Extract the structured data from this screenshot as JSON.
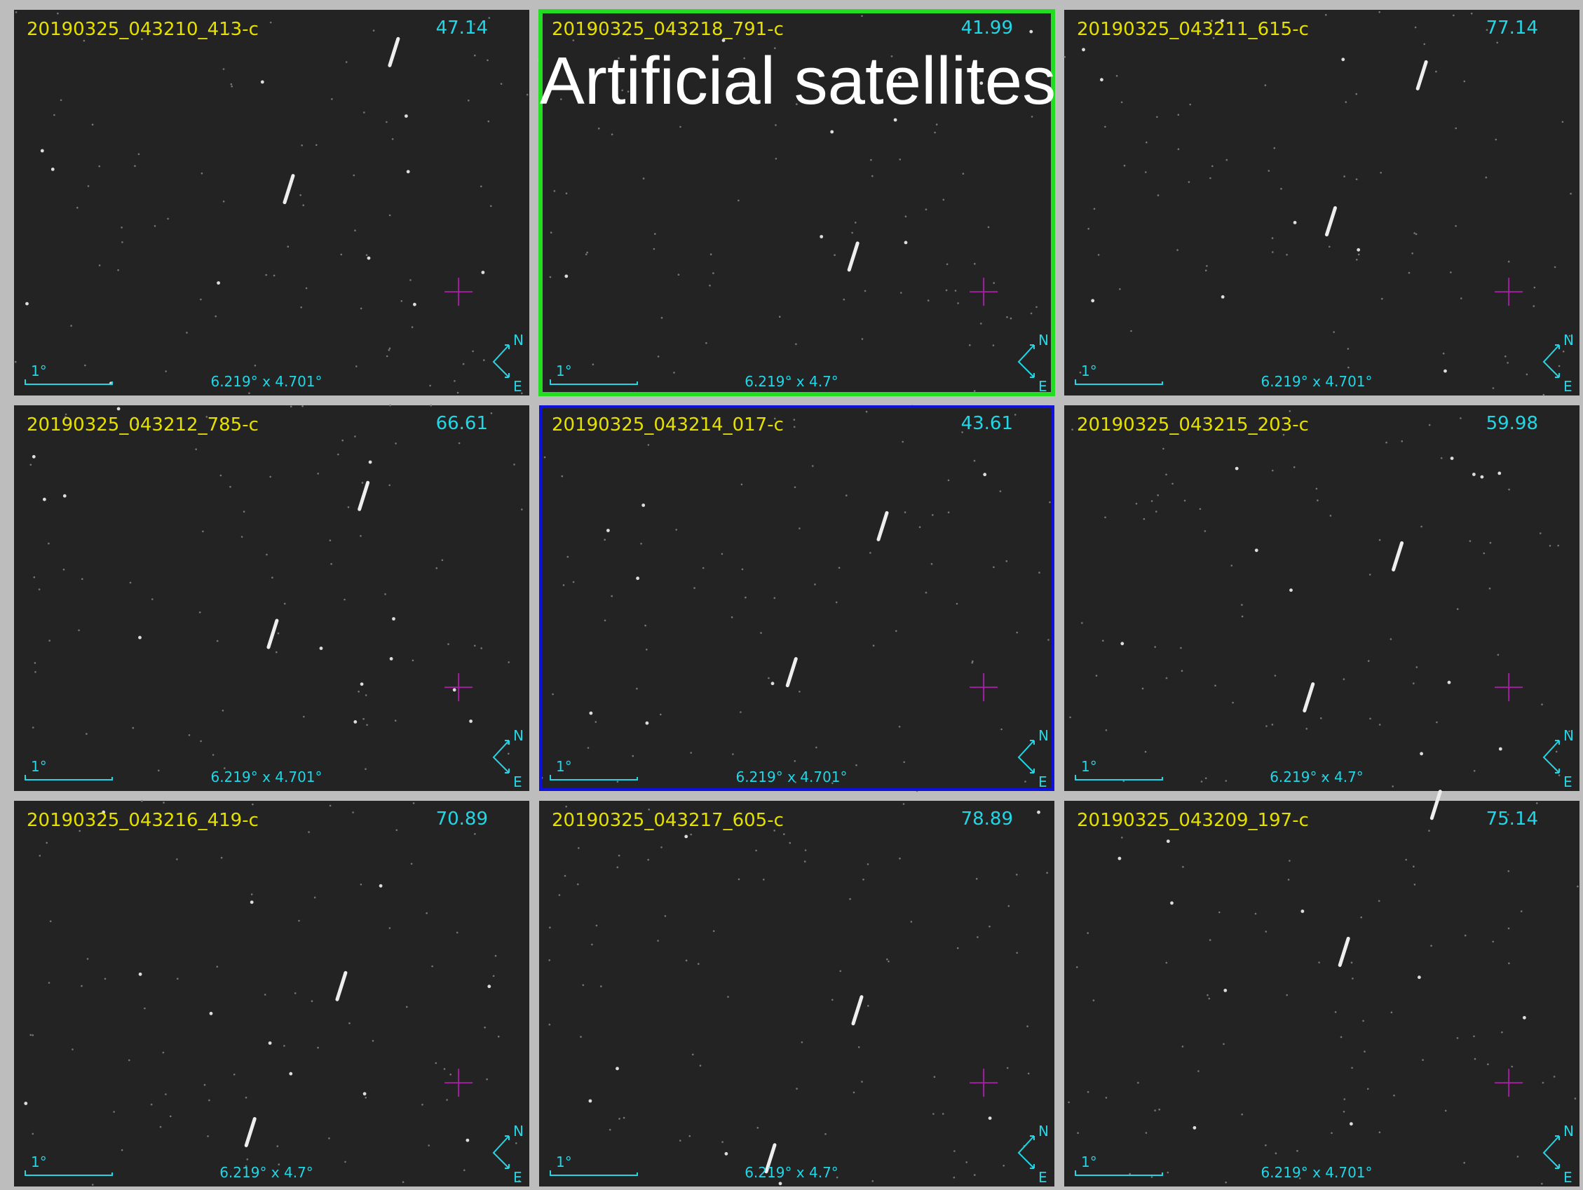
{
  "title": "Artificial satellites",
  "panels": [
    {
      "name": "20190325_043210_413-c",
      "value": 47.14,
      "scale": "1°",
      "fov": "6.219° x 4.701°",
      "north": "N",
      "east": "E"
    },
    {
      "name": "20190325_043218_791-c",
      "value": 41.99,
      "scale": "1°",
      "fov": "6.219° x 4.7°",
      "north": "N",
      "east": "E"
    },
    {
      "name": "20190325_043211_615-c",
      "value": 77.14,
      "scale": "1°",
      "fov": "6.219° x 4.701°",
      "north": "N",
      "east": "E"
    },
    {
      "name": "20190325_043212_785-c",
      "value": 66.61,
      "scale": "1°",
      "fov": "6.219° x 4.701°",
      "north": "N",
      "east": "E"
    },
    {
      "name": "20190325_043214_017-c",
      "value": 43.61,
      "scale": "1°",
      "fov": "6.219° x 4.701°",
      "north": "N",
      "east": "E"
    },
    {
      "name": "20190325_043215_203-c",
      "value": 59.98,
      "scale": "1°",
      "fov": "6.219° x 4.7°",
      "north": "N",
      "east": "E"
    },
    {
      "name": "20190325_043216_419-c",
      "value": 70.89,
      "scale": "1°",
      "fov": "6.219° x 4.7°",
      "north": "N",
      "east": "E"
    },
    {
      "name": "20190325_043217_605-c",
      "value": 78.89,
      "scale": "1°",
      "fov": "6.219° x 4.7°",
      "north": "N",
      "east": "E"
    },
    {
      "name": "20190325_043209_197-c",
      "value": 75.14,
      "scale": "1°",
      "fov": "6.219° x 4.701°",
      "north": "N",
      "east": "E"
    }
  ]
}
